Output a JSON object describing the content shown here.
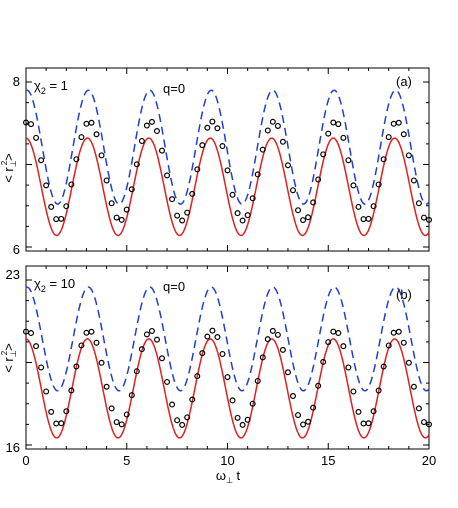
{
  "chart_data": [
    {
      "type": "line",
      "panel_tag": "(a)",
      "param_label_base": "χ",
      "param_label_sub": "2",
      "param_label_rest": " = 1",
      "q_label": "q=0",
      "ylabel_base": "< r",
      "ylabel_sub": "⊥",
      "ylabel_sup": "2",
      "ylabel_end": ">",
      "ylim": [
        6,
        8
      ],
      "xlim": [
        0,
        20
      ],
      "yticks": [
        6,
        8
      ],
      "xticks": [
        0,
        5,
        10,
        15,
        20
      ],
      "x_tick_labels_shown": false,
      "period": 3.05,
      "series": [
        {
          "style": "dashed",
          "color": "#1f3fd1",
          "mean": 7.21,
          "amplitude": 0.69,
          "phase_shift": -0.05
        },
        {
          "style": "solid",
          "color": "#e02020",
          "mean": 6.73,
          "amplitude": 0.59,
          "phase_shift": 0.0
        },
        {
          "style": "markers",
          "color": "#000000",
          "mean": 6.92,
          "amplitude": 0.6,
          "phase_shift": -0.1
        }
      ]
    },
    {
      "type": "line",
      "panel_tag": "(b)",
      "param_label_base": "χ",
      "param_label_sub": "2",
      "param_label_rest": " = 10",
      "q_label": "q=0",
      "ylabel_base": "< r",
      "ylabel_sub": "⊥",
      "ylabel_sup": "2",
      "ylabel_end": ">",
      "ylim": [
        16,
        23
      ],
      "xlim": [
        0,
        20
      ],
      "yticks": [
        16,
        23
      ],
      "xticks": [
        0,
        5,
        10,
        15,
        20
      ],
      "x_tick_labels_shown": true,
      "period": 3.05,
      "series": [
        {
          "style": "dashed",
          "color": "#1f3fd1",
          "mean": 20.5,
          "amplitude": 2.2,
          "phase_shift": -0.05
        },
        {
          "style": "solid",
          "color": "#e02020",
          "mean": 18.4,
          "amplitude": 2.1,
          "phase_shift": 0.0
        },
        {
          "style": "markers",
          "color": "#000000",
          "mean": 18.85,
          "amplitude": 2.0,
          "phase_shift": -0.1
        }
      ]
    }
  ],
  "xlabel_base": "ω",
  "xlabel_sub": "⊥",
  "xlabel_rest": " t"
}
